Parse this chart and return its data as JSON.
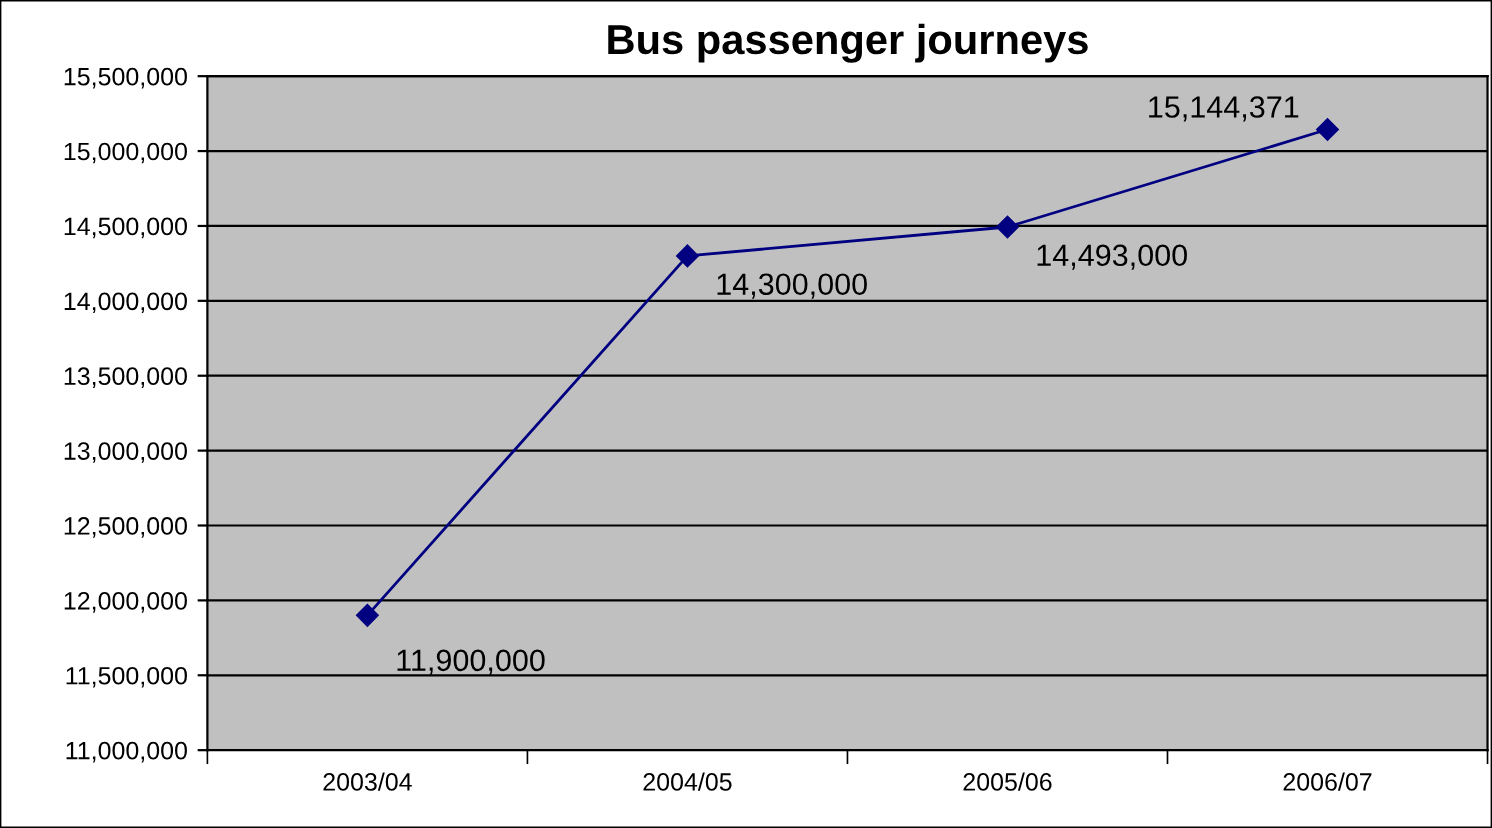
{
  "chart_data": {
    "type": "line",
    "title": "Bus passenger journeys",
    "categories": [
      "2003/04",
      "2004/05",
      "2005/06",
      "2006/07"
    ],
    "series": [
      {
        "color": "#000080",
        "values": [
          11900000,
          14300000,
          14493000,
          15144371
        ],
        "value_labels": [
          "11,900,000",
          "14,300,000",
          "14,493,000",
          "15,144,371"
        ]
      }
    ],
    "ylim": [
      11000000,
      15500000
    ],
    "yticks": [
      {
        "value": 11000000,
        "label": "11,000,000"
      },
      {
        "value": 11500000,
        "label": "11,500,000"
      },
      {
        "value": 12000000,
        "label": "12,000,000"
      },
      {
        "value": 12500000,
        "label": "12,500,000"
      },
      {
        "value": 13000000,
        "label": "13,000,000"
      },
      {
        "value": 13500000,
        "label": "13,500,000"
      },
      {
        "value": 14000000,
        "label": "14,000,000"
      },
      {
        "value": 14500000,
        "label": "14,500,000"
      },
      {
        "value": 15000000,
        "label": "15,000,000"
      },
      {
        "value": 15500000,
        "label": "15,500,000"
      }
    ],
    "grid": "y",
    "marker": "diamond",
    "line_style": "solid",
    "legend": false
  }
}
